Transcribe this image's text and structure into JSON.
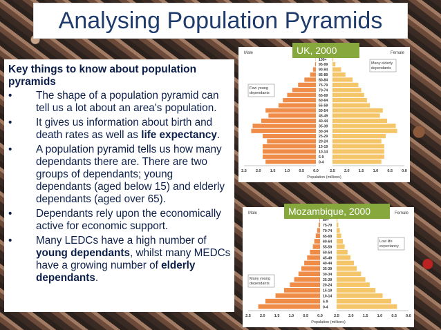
{
  "slide": {
    "title": "Analysing Population Pyramids",
    "heading": "Key things to know about population pyramids",
    "bullets": [
      {
        "parts": [
          {
            "t": "The shape of a population pyramid can tell us a lot about an area's population.",
            "b": false
          }
        ]
      },
      {
        "parts": [
          {
            "t": "It gives us information about birth and death rates as well as ",
            "b": false
          },
          {
            "t": "life expectancy",
            "b": true
          },
          {
            "t": ".",
            "b": false
          }
        ]
      },
      {
        "parts": [
          {
            "t": "A population pyramid tells us how many dependants there are. There are two groups of dependants; young dependants (aged below 15) and elderly dependants (aged over 65).",
            "b": false
          }
        ]
      },
      {
        "parts": [
          {
            "t": "Dependants rely upon the economically active for economic support.",
            "b": false
          }
        ]
      },
      {
        "parts": [
          {
            "t": "Many LEDCs have a high number of ",
            "b": false
          },
          {
            "t": "young dependants",
            "b": true
          },
          {
            "t": ", whilst many MEDCs have a growing number of ",
            "b": false
          },
          {
            "t": "elderly dependants",
            "b": true
          },
          {
            "t": ".",
            "b": false
          }
        ]
      }
    ]
  },
  "colors": {
    "male": "#ef8c48",
    "female": "#f5c56a",
    "label_bg": "#86a83c",
    "title": "#1f3b6b",
    "text": "#0c1f4a"
  },
  "chart_data": [
    {
      "type": "bar",
      "orientation": "horizontal-pyramid",
      "label": "UK, 2000",
      "left_label": "Male",
      "right_label": "Female",
      "categories": [
        "100+",
        "95-99",
        "90-94",
        "85-89",
        "80-84",
        "75-79",
        "70-74",
        "65-69",
        "60-64",
        "55-59",
        "50-54",
        "45-49",
        "40-44",
        "35-39",
        "30-34",
        "25-29",
        "20-24",
        "15-19",
        "10-14",
        "5-9",
        "0-4"
      ],
      "series": [
        {
          "name": "Male",
          "values": [
            0.01,
            0.03,
            0.1,
            0.2,
            0.4,
            0.62,
            0.82,
            1.0,
            1.15,
            1.3,
            1.75,
            1.65,
            1.9,
            2.2,
            2.25,
            1.85,
            1.7,
            1.85,
            1.85,
            1.85,
            1.75
          ]
        },
        {
          "name": "Female",
          "values": [
            0.03,
            0.1,
            0.3,
            0.45,
            0.7,
            0.9,
            1.0,
            1.1,
            1.2,
            1.3,
            1.75,
            1.65,
            1.9,
            2.2,
            2.25,
            1.85,
            1.7,
            1.8,
            1.8,
            1.8,
            1.7
          ]
        }
      ],
      "xlim": [
        0,
        2.5
      ],
      "ticks": [
        "2.5",
        "2.0",
        "1.5",
        "1.0",
        "0.5",
        "0.0",
        "0.0",
        "0.5",
        "1.0",
        "1.5",
        "2.0",
        "2.5"
      ],
      "xlabel": "Population (millions)",
      "annotations": {
        "left": "Few young dependants",
        "right": "Many elderly dependants"
      }
    },
    {
      "type": "bar",
      "orientation": "horizontal-pyramid",
      "label": "Mozambique, 2000",
      "left_label": "Male",
      "right_label": "Female",
      "categories": [
        "80+",
        "75-79",
        "70-74",
        "65-69",
        "60-64",
        "55-59",
        "50-54",
        "45-49",
        "40-44",
        "35-39",
        "30-34",
        "25-29",
        "20-24",
        "15-19",
        "10-14",
        "5-9",
        "0-4"
      ],
      "series": [
        {
          "name": "Male",
          "values": [
            0.02,
            0.05,
            0.1,
            0.15,
            0.2,
            0.25,
            0.35,
            0.45,
            0.55,
            0.65,
            0.75,
            0.9,
            1.05,
            1.25,
            1.55,
            1.9,
            2.15
          ]
        },
        {
          "name": "Female",
          "values": [
            0.03,
            0.06,
            0.11,
            0.16,
            0.22,
            0.28,
            0.38,
            0.48,
            0.6,
            0.7,
            0.85,
            1.0,
            1.15,
            1.35,
            1.6,
            1.9,
            2.1
          ]
        }
      ],
      "xlim": [
        0,
        2.5
      ],
      "ticks": [
        "2.5",
        "2.0",
        "1.5",
        "1.0",
        "0.5",
        "0.0",
        "0.0",
        "0.5",
        "1.0",
        "1.5",
        "2.0",
        "2.5"
      ],
      "xlabel": "Population (millions)",
      "annotations": {
        "left": "Many young dependants",
        "right": "Low life expectancy"
      }
    }
  ]
}
